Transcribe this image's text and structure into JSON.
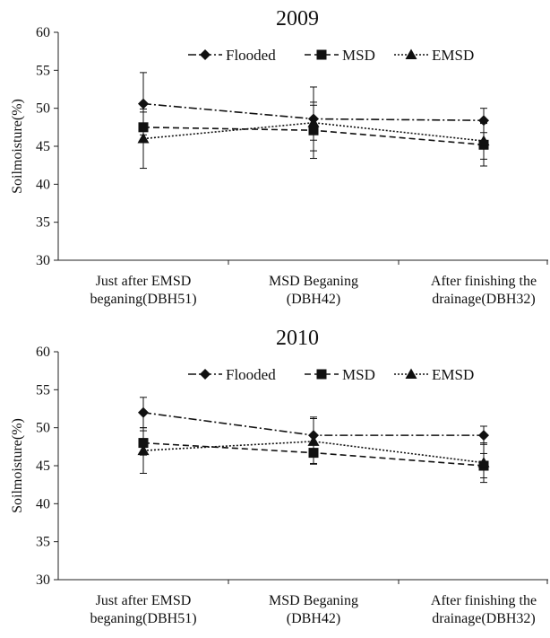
{
  "chart_data": [
    {
      "type": "line",
      "title": "2009",
      "ylabel": "Soilmoisture(%)",
      "xlabel": "",
      "ylim": [
        30,
        60
      ],
      "yticks": [
        30,
        35,
        40,
        45,
        50,
        55,
        60
      ],
      "categories": [
        [
          "Just after EMSD",
          "beganing(DBH51)"
        ],
        [
          "MSD Beganing",
          "(DBH42)"
        ],
        [
          "After finishing the",
          "drainage(DBH32)"
        ]
      ],
      "legend_position": "top",
      "series": [
        {
          "name": "Flooded",
          "marker": "diamond",
          "dash": "dashdot",
          "values": [
            50.6,
            48.6,
            48.4
          ],
          "errors": [
            4.1,
            4.2,
            1.6
          ]
        },
        {
          "name": "MSD",
          "marker": "square",
          "dash": "dashed",
          "values": [
            47.5,
            47.1,
            45.2
          ],
          "errors": [
            2.0,
            3.7,
            2.8
          ]
        },
        {
          "name": "EMSD",
          "marker": "triangle",
          "dash": "dotted",
          "values": [
            46.0,
            48.1,
            45.7
          ],
          "errors": [
            3.9,
            2.3,
            2.4
          ]
        }
      ]
    },
    {
      "type": "line",
      "title": "2010",
      "ylabel": "Soilmoisture(%)",
      "xlabel": "",
      "ylim": [
        30,
        60
      ],
      "yticks": [
        30,
        35,
        40,
        45,
        50,
        55,
        60
      ],
      "categories": [
        [
          "Just after EMSD",
          "beganing(DBH51)"
        ],
        [
          "MSD Beganing",
          "(DBH42)"
        ],
        [
          "After finishing the",
          "drainage(DBH32)"
        ]
      ],
      "legend_position": "top",
      "series": [
        {
          "name": "Flooded",
          "marker": "diamond",
          "dash": "dashdot",
          "values": [
            52.0,
            49.0,
            49.0
          ],
          "errors": [
            2.0,
            2.4,
            1.2
          ]
        },
        {
          "name": "MSD",
          "marker": "square",
          "dash": "dashed",
          "values": [
            48.0,
            46.7,
            45.0
          ],
          "errors": [
            1.6,
            1.4,
            1.6
          ]
        },
        {
          "name": "EMSD",
          "marker": "triangle",
          "dash": "dotted",
          "values": [
            47.0,
            48.2,
            45.4
          ],
          "errors": [
            3.0,
            3.0,
            2.6
          ]
        }
      ]
    }
  ]
}
